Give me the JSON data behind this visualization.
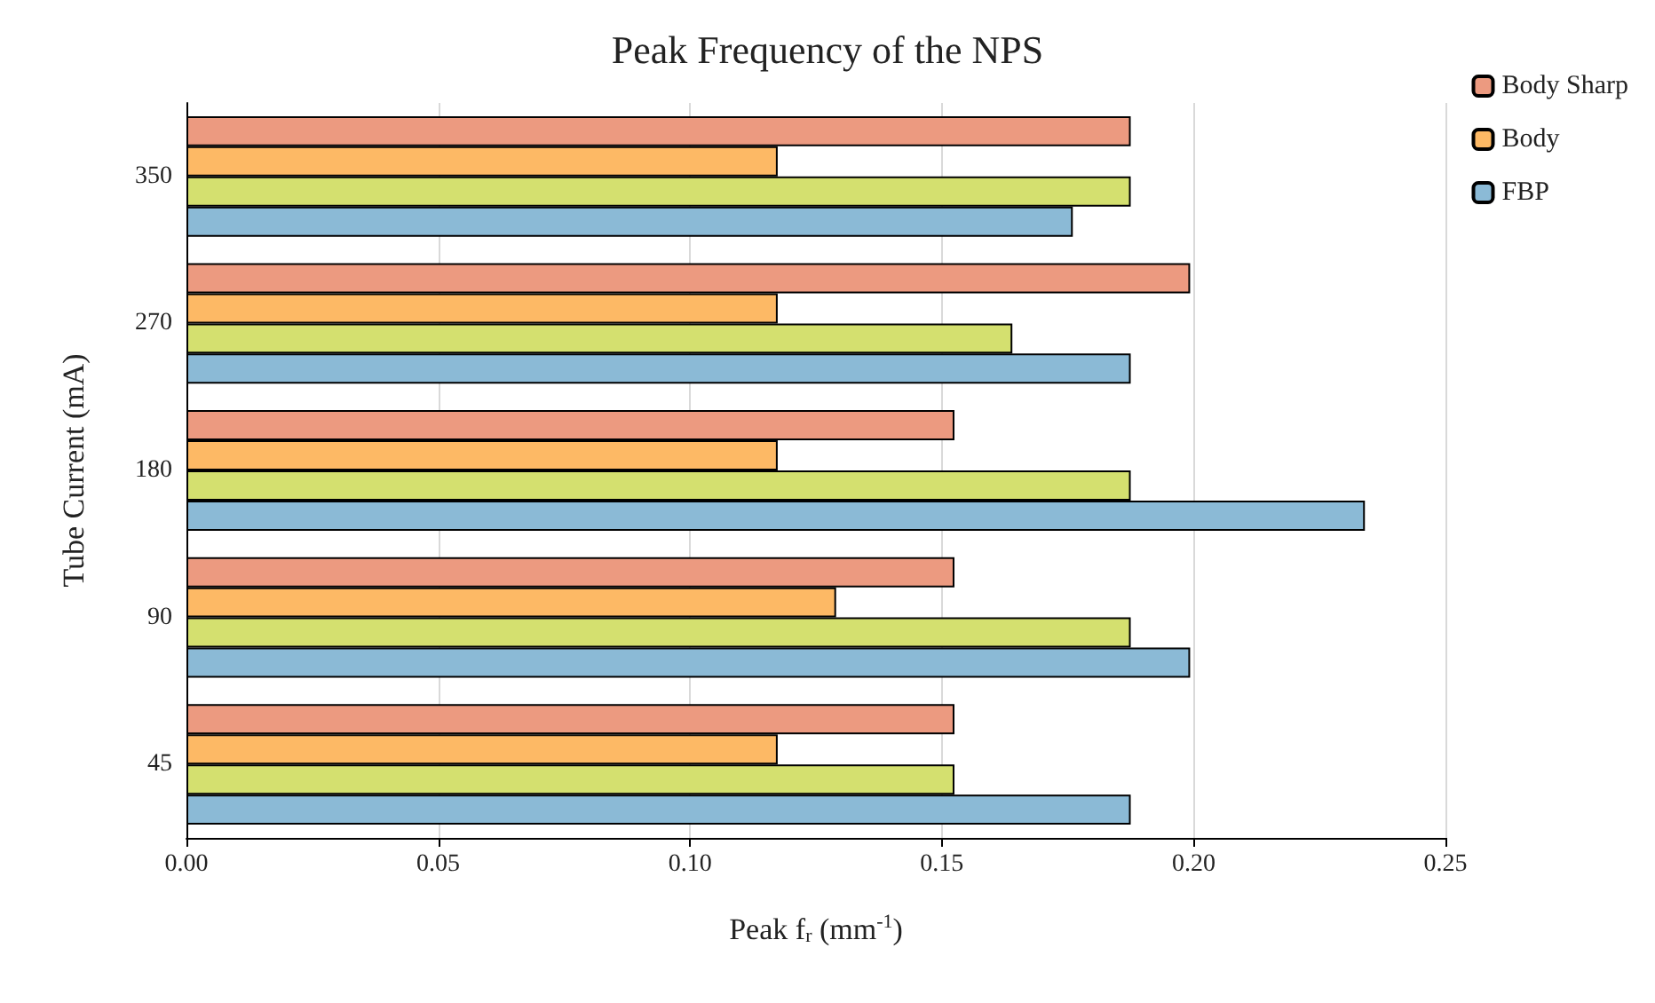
{
  "chart_data": {
    "type": "bar",
    "orientation": "horizontal",
    "title": "Peak Frequency of the NPS",
    "xlabel": "Peak f$_{r}$ (mm$^{-1}$)",
    "ylabel": "Tube Current (mA)",
    "categories": [
      "350",
      "270",
      "180",
      "90",
      "45"
    ],
    "series": [
      {
        "name": "Body Sharp",
        "color": "#ec9a80",
        "values": [
          0.1875,
          0.1993,
          0.1525,
          0.1525,
          0.1525
        ]
      },
      {
        "name": "Body",
        "color": "#fdb965",
        "values": [
          0.1174,
          0.1174,
          0.1174,
          0.129,
          0.1174
        ]
      },
      {
        "color": "#d4e06f",
        "values": [
          0.1875,
          0.164,
          0.1875,
          0.1875,
          0.1525
        ]
      },
      {
        "name": "FBP",
        "color": "#8bbad6",
        "values": [
          0.176,
          0.1875,
          0.234,
          0.1993,
          0.1875
        ]
      }
    ],
    "xlim": [
      0,
      0.25
    ],
    "xticks": [
      {
        "value": 0,
        "label": "0.00"
      },
      {
        "value": 0.05,
        "label": "0.05"
      },
      {
        "value": 0.1,
        "label": "0.10"
      },
      {
        "value": 0.15,
        "label": "0.15"
      },
      {
        "value": 0.2,
        "label": "0.20"
      },
      {
        "value": 0.25,
        "label": "0.25"
      }
    ],
    "grid": "x",
    "legend": "top right"
  }
}
